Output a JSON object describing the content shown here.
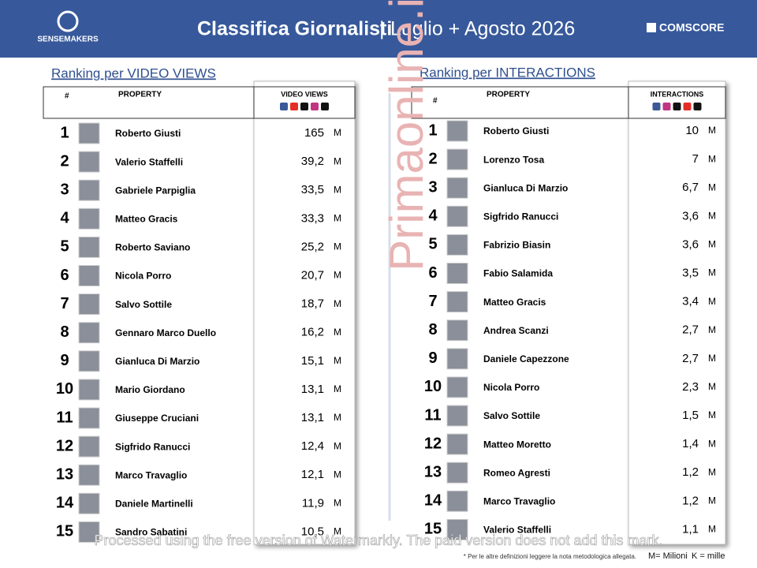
{
  "header": {
    "logo": "SENSEMAKERS",
    "title": "Classifica Giornalisti",
    "separator": "|",
    "period": "Luglio + Agosto 2026",
    "partner": "COMSCORE"
  },
  "tables": [
    {
      "section_title": "Ranking per VIDEO VIEWS",
      "columns": [
        "#",
        "PROPERTY",
        "VIDEO VIEWS"
      ],
      "rows": [
        [
          1,
          "Roberto Giusti",
          "165",
          "M"
        ],
        [
          2,
          "Valerio Staffelli",
          "39,2",
          "M"
        ],
        [
          3,
          "Gabriele Parpiglia",
          "33,5",
          "M"
        ],
        [
          4,
          "Matteo Gracis",
          "33,3",
          "M"
        ],
        [
          5,
          "Roberto Saviano",
          "25,2",
          "M"
        ],
        [
          6,
          "Nicola Porro",
          "20,7",
          "M"
        ],
        [
          7,
          "Salvo Sottile",
          "18,7",
          "M"
        ],
        [
          8,
          "Gennaro Marco Duello",
          "16,2",
          "M"
        ],
        [
          9,
          "Gianluca Di Marzio",
          "15,1",
          "M"
        ],
        [
          10,
          "Mario Giordano",
          "13,1",
          "M"
        ],
        [
          11,
          "Giuseppe Cruciani",
          "13,1",
          "M"
        ],
        [
          12,
          "Sigfrido Ranucci",
          "12,4",
          "M"
        ],
        [
          13,
          "Marco Travaglio",
          "12,1",
          "M"
        ],
        [
          14,
          "Daniele Martinelli",
          "11,9",
          "M"
        ],
        [
          15,
          "Sandro Sabatini",
          "10,5",
          "M"
        ]
      ]
    },
    {
      "section_title": "Ranking per INTERACTIONS",
      "columns": [
        "#",
        "PROPERTY",
        "INTERACTIONS"
      ],
      "rows": [
        [
          1,
          "Roberto Giusti",
          "10",
          "M"
        ],
        [
          2,
          "Lorenzo Tosa",
          "7",
          "M"
        ],
        [
          3,
          "Gianluca Di Marzio",
          "6,7",
          "M"
        ],
        [
          4,
          "Sigfrido Ranucci",
          "3,6",
          "M"
        ],
        [
          5,
          "Fabrizio Biasin",
          "3,6",
          "M"
        ],
        [
          6,
          "Fabio Salamida",
          "3,5",
          "M"
        ],
        [
          7,
          "Matteo Gracis",
          "3,4",
          "M"
        ],
        [
          8,
          "Andrea Scanzi",
          "2,7",
          "M"
        ],
        [
          9,
          "Daniele Capezzone",
          "2,7",
          "M"
        ],
        [
          10,
          "Nicola Porro",
          "2,3",
          "M"
        ],
        [
          11,
          "Salvo Sottile",
          "1,5",
          "M"
        ],
        [
          12,
          "Matteo Moretto",
          "1,4",
          "M"
        ],
        [
          13,
          "Romeo Agresti",
          "1,2",
          "M"
        ],
        [
          14,
          "Marco Travaglio",
          "1,2",
          "M"
        ],
        [
          15,
          "Valerio Staffelli",
          "1,1",
          "M"
        ]
      ]
    }
  ],
  "watermark": "Primaonline.it",
  "footer": {
    "note": "* Per le altre definizioni leggere la nota metodologica allegata.",
    "legend_m": "M= Milioni",
    "legend_k": "K = mille"
  },
  "overlay": "Processed using the free version of Watermarkly. The paid version does not add this mark."
}
